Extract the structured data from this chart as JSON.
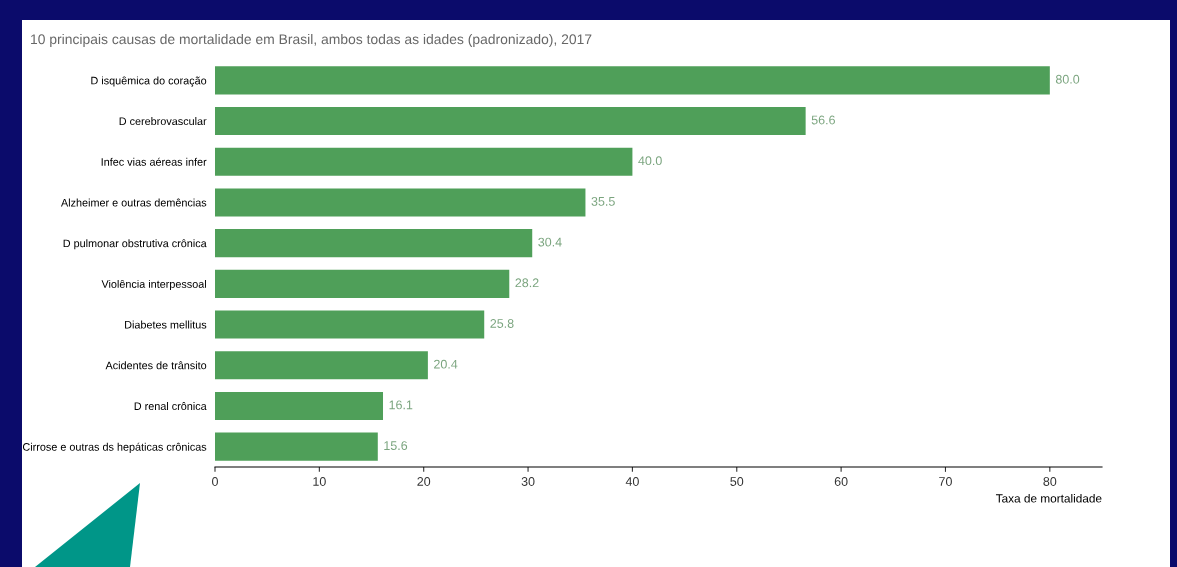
{
  "chart_data": {
    "type": "bar",
    "orientation": "horizontal",
    "title": "10 principais causas de mortalidade em Brasil, ambos todas as idades (padronizado), 2017",
    "xlabel": "Taxa de mortalidade",
    "categories": [
      "D isquêmica do coração",
      "D cerebrovascular",
      "Infec vias aéreas infer",
      "Alzheimer e outras demências",
      "D pulmonar obstrutiva crônica",
      "Violência interpessoal",
      "Diabetes mellitus",
      "Acidentes de trânsito",
      "D renal crônica",
      "Cirrose e outras ds hepáticas crônicas"
    ],
    "values": [
      80.0,
      56.6,
      40.0,
      35.5,
      30.4,
      28.2,
      25.8,
      20.4,
      16.1,
      15.6
    ],
    "value_labels": [
      "80.0",
      "56.6",
      "40.0",
      "35.5",
      "30.4",
      "28.2",
      "25.8",
      "20.4",
      "16.1",
      "15.6"
    ],
    "color": "#4f9f59",
    "xlim": [
      0,
      85
    ],
    "xticks": [
      0,
      10,
      20,
      30,
      40,
      50,
      60,
      70,
      80
    ],
    "grid": false,
    "legend": false
  }
}
